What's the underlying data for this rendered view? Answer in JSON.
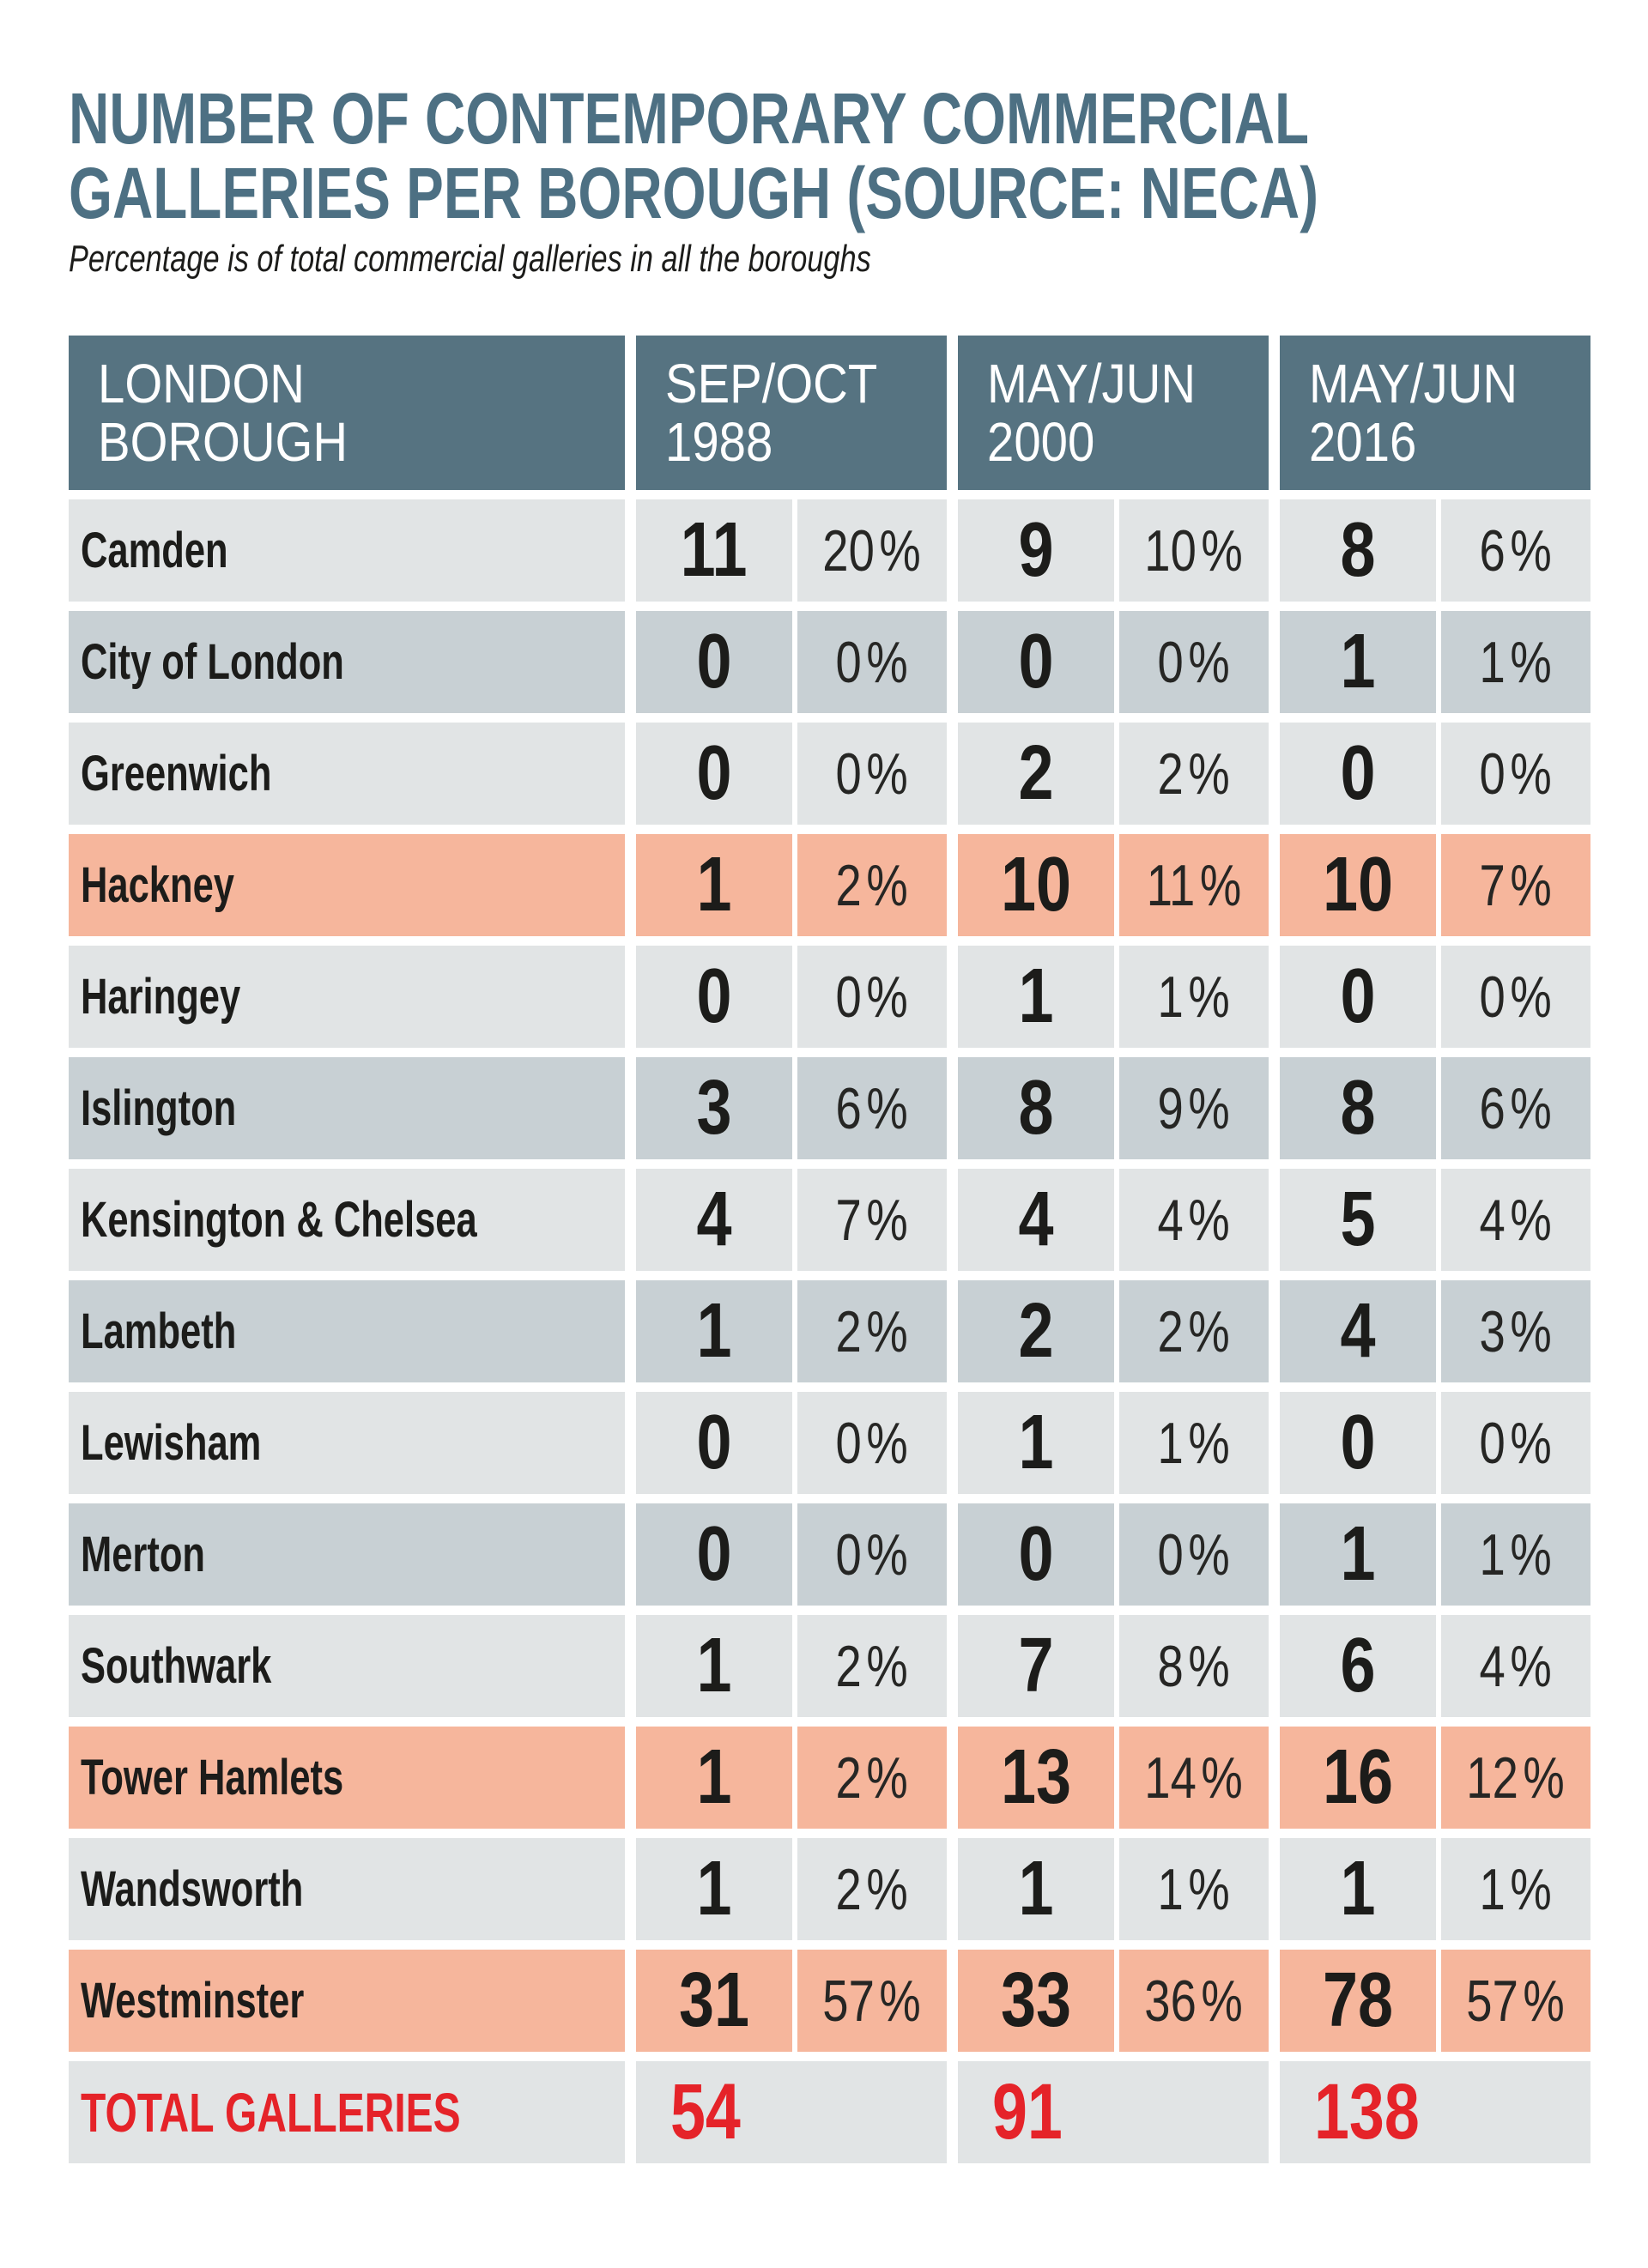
{
  "chart_data": {
    "type": "table",
    "title_line1": "NUMBER OF CONTEMPORARY COMMERCIAL",
    "title_line2": "GALLERIES PER BOROUGH (SOURCE: NECA)",
    "subtitle": "Percentage is of total commercial galleries in all the boroughs",
    "pct_suffix": "%",
    "columns": {
      "borough_line1": "LONDON",
      "borough_line2": "BOROUGH",
      "periods": [
        {
          "line1": "SEP/OCT",
          "line2": "1988"
        },
        {
          "line1": "MAY/JUN",
          "line2": "2000"
        },
        {
          "line1": "MAY/JUN",
          "line2": "2016"
        }
      ]
    },
    "rows": [
      {
        "borough": "Camden",
        "highlight": false,
        "values": [
          {
            "count": 11,
            "pct": 20
          },
          {
            "count": 9,
            "pct": 10
          },
          {
            "count": 8,
            "pct": 6
          }
        ]
      },
      {
        "borough": "City of London",
        "highlight": false,
        "values": [
          {
            "count": 0,
            "pct": 0
          },
          {
            "count": 0,
            "pct": 0
          },
          {
            "count": 1,
            "pct": 1
          }
        ]
      },
      {
        "borough": "Greenwich",
        "highlight": false,
        "values": [
          {
            "count": 0,
            "pct": 0
          },
          {
            "count": 2,
            "pct": 2
          },
          {
            "count": 0,
            "pct": 0
          }
        ]
      },
      {
        "borough": "Hackney",
        "highlight": true,
        "values": [
          {
            "count": 1,
            "pct": 2
          },
          {
            "count": 10,
            "pct": 11
          },
          {
            "count": 10,
            "pct": 7
          }
        ]
      },
      {
        "borough": "Haringey",
        "highlight": false,
        "values": [
          {
            "count": 0,
            "pct": 0
          },
          {
            "count": 1,
            "pct": 1
          },
          {
            "count": 0,
            "pct": 0
          }
        ]
      },
      {
        "borough": "Islington",
        "highlight": false,
        "values": [
          {
            "count": 3,
            "pct": 6
          },
          {
            "count": 8,
            "pct": 9
          },
          {
            "count": 8,
            "pct": 6
          }
        ]
      },
      {
        "borough": "Kensington & Chelsea",
        "highlight": false,
        "values": [
          {
            "count": 4,
            "pct": 7
          },
          {
            "count": 4,
            "pct": 4
          },
          {
            "count": 5,
            "pct": 4
          }
        ]
      },
      {
        "borough": "Lambeth",
        "highlight": false,
        "values": [
          {
            "count": 1,
            "pct": 2
          },
          {
            "count": 2,
            "pct": 2
          },
          {
            "count": 4,
            "pct": 3
          }
        ]
      },
      {
        "borough": "Lewisham",
        "highlight": false,
        "values": [
          {
            "count": 0,
            "pct": 0
          },
          {
            "count": 1,
            "pct": 1
          },
          {
            "count": 0,
            "pct": 0
          }
        ]
      },
      {
        "borough": "Merton",
        "highlight": false,
        "values": [
          {
            "count": 0,
            "pct": 0
          },
          {
            "count": 0,
            "pct": 0
          },
          {
            "count": 1,
            "pct": 1
          }
        ]
      },
      {
        "borough": "Southwark",
        "highlight": false,
        "values": [
          {
            "count": 1,
            "pct": 2
          },
          {
            "count": 7,
            "pct": 8
          },
          {
            "count": 6,
            "pct": 4
          }
        ]
      },
      {
        "borough": "Tower Hamlets",
        "highlight": true,
        "values": [
          {
            "count": 1,
            "pct": 2
          },
          {
            "count": 13,
            "pct": 14
          },
          {
            "count": 16,
            "pct": 12
          }
        ]
      },
      {
        "borough": "Wandsworth",
        "highlight": false,
        "values": [
          {
            "count": 1,
            "pct": 2
          },
          {
            "count": 1,
            "pct": 1
          },
          {
            "count": 1,
            "pct": 1
          }
        ]
      },
      {
        "borough": "Westminster",
        "highlight": true,
        "values": [
          {
            "count": 31,
            "pct": 57
          },
          {
            "count": 33,
            "pct": 36
          },
          {
            "count": 78,
            "pct": 57
          }
        ]
      }
    ],
    "total_row": {
      "label": "TOTAL GALLERIES",
      "values": [
        54,
        91,
        138
      ]
    },
    "layout_hints": {
      "legend": "none",
      "grid": "cell-matrix with white gutters"
    }
  },
  "style": {
    "title_color": "#4d7083",
    "header_bg": "#567381",
    "header_text": "#ffffff",
    "row_light": "#e1e4e5",
    "row_dark": "#c8d0d4",
    "row_highlight": "#f6b69c",
    "accent_red": "#e52329",
    "text_color": "#1c1c1a",
    "page_bg": "#ffffff"
  }
}
